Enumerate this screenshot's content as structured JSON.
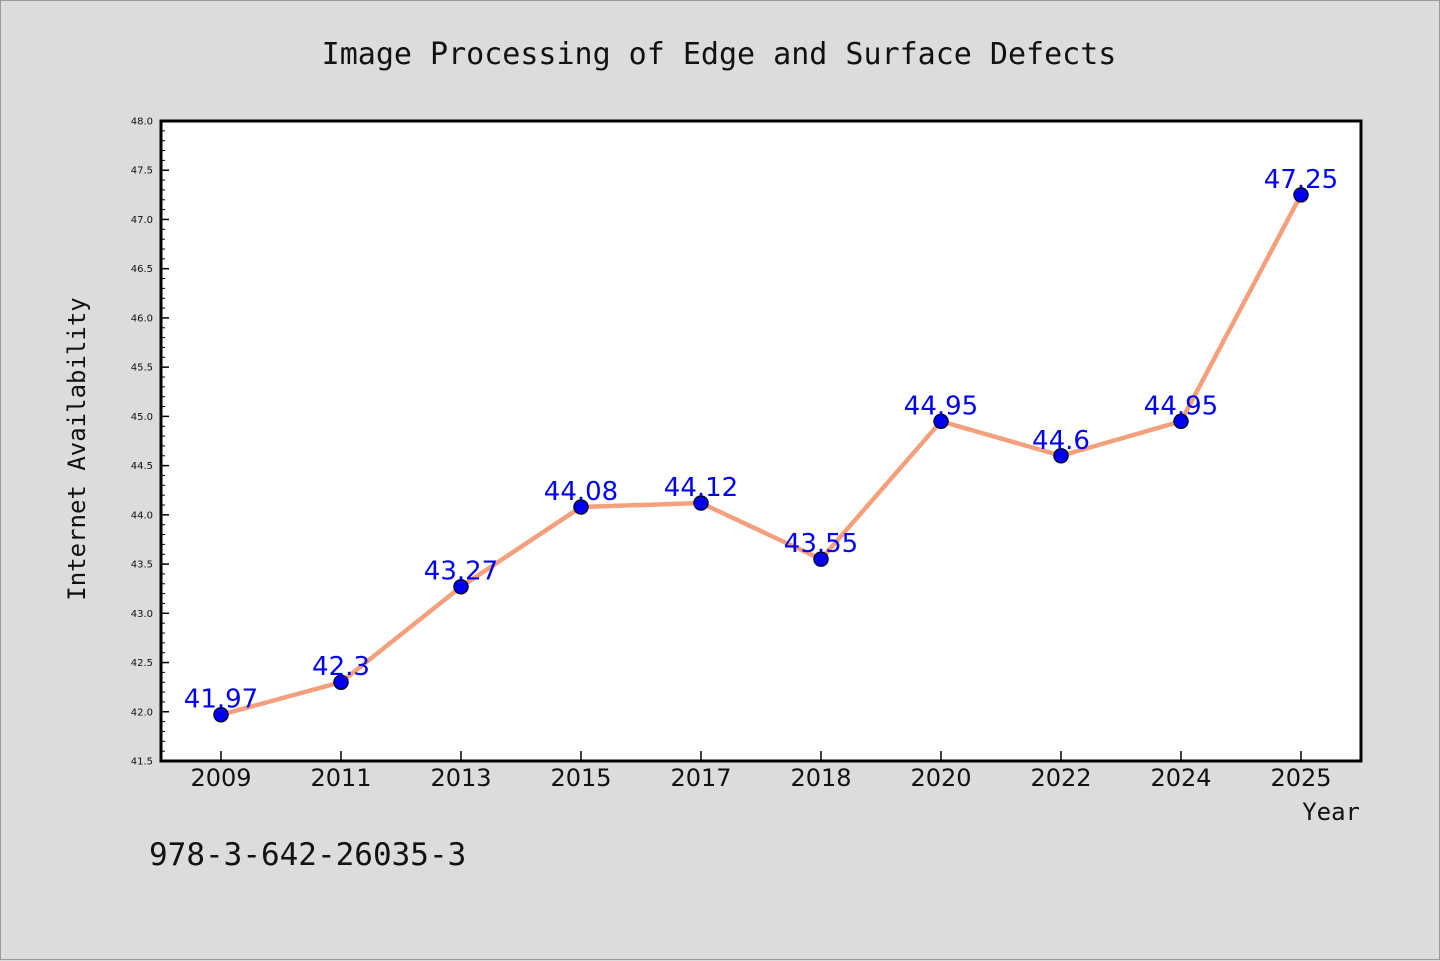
{
  "colors": {
    "background": "#dcdcdc",
    "plot_background": "#ffffff",
    "line": "#f4a07c",
    "marker": "#0000ee",
    "data_label": "#0000ee",
    "axis": "#000000"
  },
  "footer": {
    "text": "978-3-642-26035-3"
  },
  "chart_data": {
    "type": "line",
    "title": "Image Processing of Edge and Surface Defects",
    "xlabel": "Year",
    "ylabel": "Internet Availability",
    "categories": [
      "2009",
      "2011",
      "2013",
      "2015",
      "2017",
      "2018",
      "2020",
      "2022",
      "2024",
      "2025"
    ],
    "series": [
      {
        "values": [
          41.97,
          42.3,
          43.27,
          44.08,
          44.12,
          43.55,
          44.95,
          44.6,
          44.95,
          47.25
        ],
        "labels": [
          "41.97",
          "42.3",
          "43.27",
          "44.08",
          "44.12",
          "43.55",
          "44.95",
          "44.6",
          "44.95",
          "47.25"
        ]
      }
    ],
    "ylim": [
      41.5,
      48.0
    ],
    "yticks": [
      "41.5",
      "42.0",
      "42.5",
      "43.0",
      "43.5",
      "44.0",
      "44.5",
      "45.0",
      "45.5",
      "46.0",
      "46.5",
      "47.0",
      "47.5",
      "48.0"
    ],
    "grid": false,
    "legend": "none",
    "markers": true
  }
}
